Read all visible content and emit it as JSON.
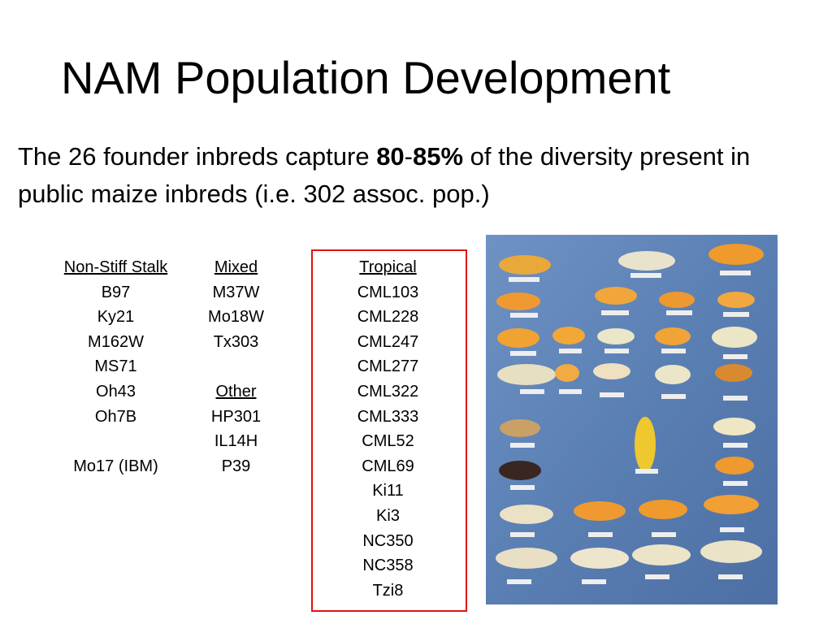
{
  "slide": {
    "title": "NAM Population Development",
    "intro_before": "The 26 founder inbreds capture ",
    "intro_bold_a": "80",
    "intro_dash": "-",
    "intro_bold_b": "85%",
    "intro_after": " of the diversity present in public maize inbreds (i.e. 302 assoc. pop.)"
  },
  "groups": {
    "non_stiff_stalk": {
      "heading": "Non-Stiff Stalk",
      "items": [
        "B97",
        "Ky21",
        "M162W",
        "MS71",
        "Oh43",
        "Oh7B"
      ],
      "extra": "Mo17 (IBM)"
    },
    "mixed": {
      "heading": "Mixed",
      "items": [
        "M37W",
        "Mo18W",
        "Tx303"
      ]
    },
    "other": {
      "heading": "Other",
      "items": [
        "HP301",
        "IL14H",
        "P39"
      ]
    },
    "tropical": {
      "heading": "Tropical",
      "items": [
        "CML103",
        "CML228",
        "CML247",
        "CML277",
        "CML322",
        "CML333",
        "CML52",
        "CML69",
        "Ki11",
        "Ki3",
        "NC350",
        "NC358",
        "Tzi8"
      ]
    }
  },
  "colors": {
    "highlight_border": "#e01414",
    "photo_background": "#5a7fb3"
  }
}
